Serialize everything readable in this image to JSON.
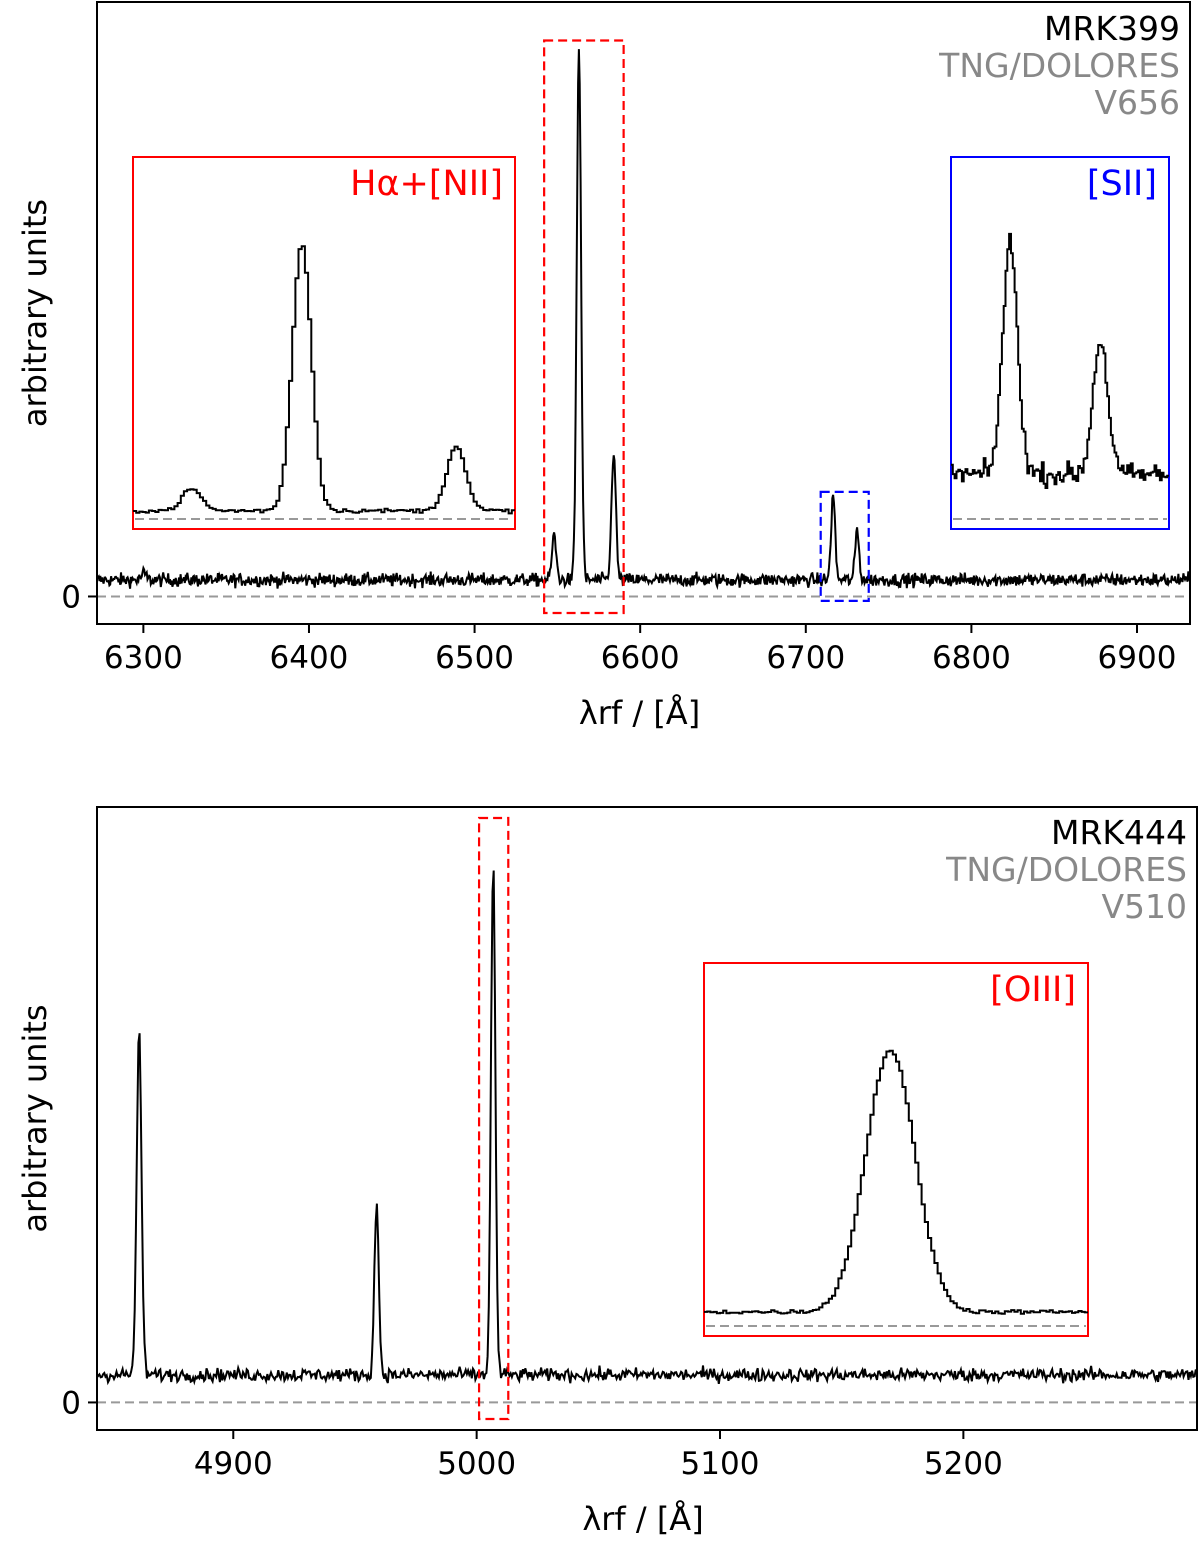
{
  "chart_data": [
    {
      "type": "line",
      "object": "MRK399",
      "instrument": "TNG/DOLORES",
      "grism": "V656",
      "xlabel": "λrf / [Å]",
      "ylabel": "arbitrary units",
      "xlim": [
        6272,
        6932
      ],
      "ylim": [
        -0.05,
        1.08
      ],
      "xticks": [
        6300,
        6400,
        6500,
        6600,
        6700,
        6800,
        6900
      ],
      "yticks": [
        0
      ],
      "grid": false,
      "continuum": 0.03,
      "noise": 0.006,
      "lines": [
        {
          "center": 6300.3,
          "amp": 0.012,
          "sigma": 1.4
        },
        {
          "center": 6548.0,
          "amp": 0.08,
          "sigma": 1.3
        },
        {
          "center": 6563.0,
          "amp": 0.97,
          "sigma": 1.3
        },
        {
          "center": 6584.0,
          "amp": 0.235,
          "sigma": 1.3
        },
        {
          "center": 6716.5,
          "amp": 0.155,
          "sigma": 1.2
        },
        {
          "center": 6731.0,
          "amp": 0.09,
          "sigma": 1.2
        }
      ],
      "highlight_boxes": [
        {
          "x": [
            6542,
            6590
          ],
          "y": [
            -0.03,
            1.01
          ],
          "color": "#ff0000"
        },
        {
          "x": [
            6709,
            6738
          ],
          "y": [
            -0.008,
            0.19
          ],
          "color": "#0000ff"
        }
      ],
      "insets": [
        {
          "label": "Hα+[NII]",
          "color": "#ff0000",
          "range": [
            6540,
            6592
          ]
        },
        {
          "label": "[SII]",
          "color": "#0000ff",
          "range": [
            6707,
            6742
          ]
        }
      ]
    },
    {
      "type": "line",
      "object": "MRK444",
      "instrument": "TNG/DOLORES",
      "grism": "V510",
      "xlabel": "λrf / [Å]",
      "ylabel": "arbitrary units",
      "xlim": [
        4844,
        5296
      ],
      "ylim": [
        -0.05,
        1.08
      ],
      "xticks": [
        4900,
        5000,
        5100,
        5200
      ],
      "yticks": [
        0
      ],
      "grid": false,
      "continuum": 0.05,
      "noise": 0.006,
      "lines": [
        {
          "center": 4861.3,
          "amp": 0.62,
          "sigma": 1.0
        },
        {
          "center": 4958.9,
          "amp": 0.31,
          "sigma": 0.9
        },
        {
          "center": 5006.8,
          "amp": 0.93,
          "sigma": 0.9
        }
      ],
      "highlight_boxes": [
        {
          "x": [
            5001,
            5013
          ],
          "y": [
            -0.03,
            1.06
          ],
          "color": "#ff0000"
        }
      ],
      "insets": [
        {
          "label": "[OIII]",
          "color": "#ff0000",
          "range": [
            5000,
            5014
          ]
        }
      ]
    }
  ]
}
